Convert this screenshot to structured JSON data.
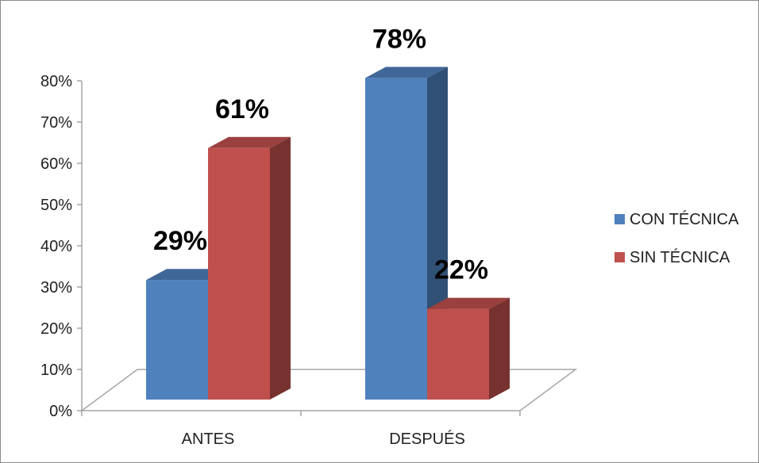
{
  "chart_data": {
    "type": "bar",
    "categories": [
      "ANTES",
      "DESPUÉS"
    ],
    "series": [
      {
        "name": "CON TÉCNICA",
        "values": [
          29,
          78
        ],
        "labels": [
          "29%",
          "78%"
        ],
        "color": "#4f81bd"
      },
      {
        "name": "SIN TÉCNICA",
        "values": [
          61,
          22
        ],
        "labels": [
          "61%",
          "22%"
        ],
        "color": "#c0504d"
      }
    ],
    "ylim": [
      0,
      80
    ],
    "yticks": [
      0,
      10,
      20,
      30,
      40,
      50,
      60,
      70,
      80
    ],
    "ytick_labels": [
      "0%",
      "10%",
      "20%",
      "30%",
      "40%",
      "50%",
      "60%",
      "70%",
      "80%"
    ],
    "title": "",
    "xlabel": "",
    "ylabel": "",
    "legend_position": "right",
    "grid": false,
    "style": "3d-clustered-column"
  }
}
